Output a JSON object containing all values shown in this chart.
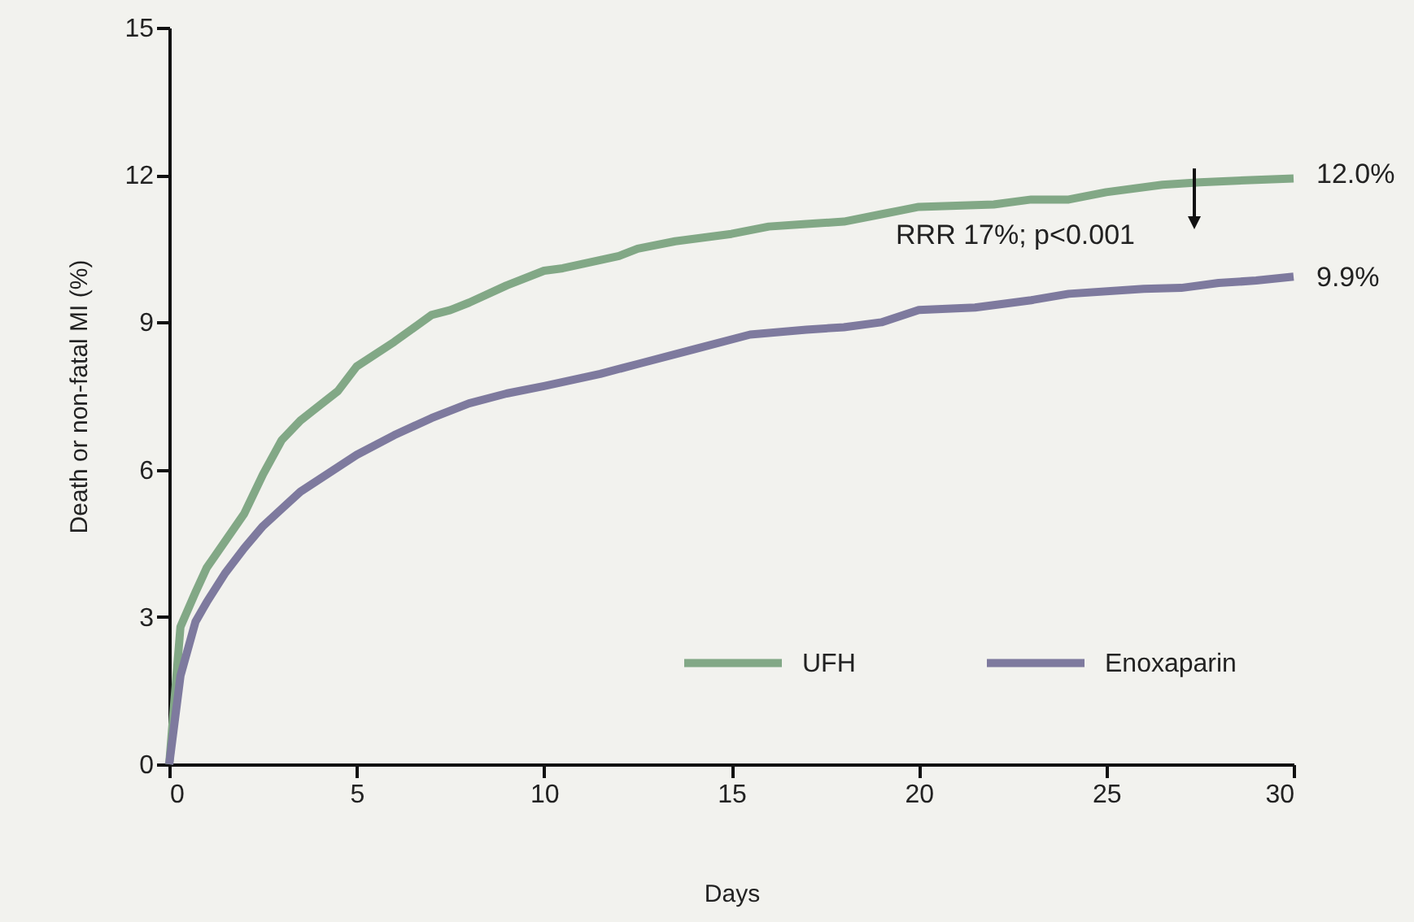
{
  "chart_data": {
    "type": "line",
    "xlabel": "Days",
    "ylabel": "Death or non-fatal MI (%)",
    "xlim": [
      0,
      30
    ],
    "xticks": [
      0,
      5,
      10,
      15,
      20,
      25,
      30
    ],
    "ylim": [
      0,
      15
    ],
    "yticks": [
      0,
      3,
      6,
      9,
      12,
      15
    ],
    "grid": false,
    "legend": "bottom right",
    "marker": "none",
    "line_style": "solid",
    "series": [
      {
        "name": "UFH",
        "color": "#82a886",
        "x": [
          0,
          0.3,
          0.7,
          1,
          2,
          2.5,
          3,
          3.5,
          4.5,
          5,
          6,
          7,
          7.5,
          8,
          9,
          10,
          10.5,
          12,
          12.5,
          13.5,
          15,
          16,
          17,
          18,
          19,
          20,
          22,
          23,
          24,
          25,
          26.5,
          27.5,
          29,
          30
        ],
        "values": [
          0,
          2.8,
          3.5,
          4.0,
          5.1,
          5.9,
          6.6,
          7.0,
          7.6,
          8.1,
          8.6,
          9.15,
          9.25,
          9.4,
          9.75,
          10.05,
          10.1,
          10.35,
          10.5,
          10.65,
          10.8,
          10.95,
          11.0,
          11.05,
          11.2,
          11.35,
          11.4,
          11.5,
          11.5,
          11.65,
          11.8,
          11.85,
          11.9,
          11.93
        ]
      },
      {
        "name": "Enoxaparin",
        "color": "#7e7a9e",
        "x": [
          0,
          0.3,
          0.7,
          1,
          1.5,
          2,
          2.5,
          3,
          3.5,
          5,
          6,
          7,
          8,
          9,
          10,
          11.5,
          12.5,
          14,
          15.5,
          17,
          18,
          19,
          20,
          21.5,
          23,
          24,
          26,
          27,
          28,
          29,
          30
        ],
        "values": [
          0,
          1.8,
          2.9,
          3.3,
          3.9,
          4.4,
          4.85,
          5.2,
          5.55,
          6.3,
          6.7,
          7.05,
          7.35,
          7.55,
          7.7,
          7.95,
          8.15,
          8.45,
          8.75,
          8.85,
          8.9,
          9.0,
          9.25,
          9.3,
          9.45,
          9.58,
          9.68,
          9.7,
          9.8,
          9.85,
          9.93
        ]
      }
    ],
    "annotations": [
      {
        "text": "12.0%",
        "x": 30,
        "y": 12.0
      },
      {
        "text": "9.9%",
        "x": 30,
        "y": 9.9
      },
      "RRR 17%; p<0.001"
    ]
  }
}
